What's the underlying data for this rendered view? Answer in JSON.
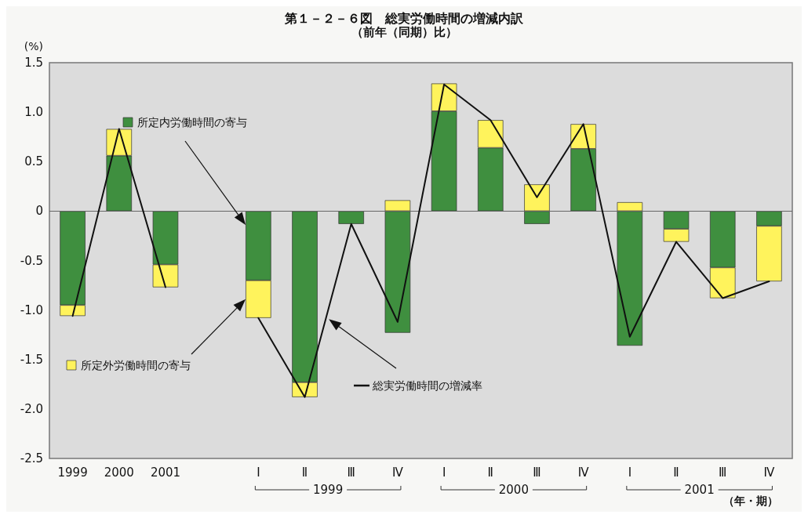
{
  "chart_data": {
    "type": "bar",
    "title": "第１－２－６図　総実労働時間の増減内訳",
    "subtitle": "（前年（同期）比）",
    "ylabel": "(%)",
    "categories": [
      "1999",
      "2000",
      "2001",
      null,
      "Ⅰ",
      "Ⅱ",
      "Ⅲ",
      "Ⅳ",
      "Ⅰ",
      "Ⅱ",
      "Ⅲ",
      "Ⅳ",
      "Ⅰ",
      "Ⅱ",
      "Ⅲ",
      "Ⅳ"
    ],
    "stacked": true,
    "series": [
      {
        "name": "所定内労働時間の寄与",
        "color": "#3f8f3f",
        "values": [
          -0.95,
          0.56,
          -0.54,
          null,
          -0.7,
          -1.73,
          -0.13,
          -1.23,
          1.01,
          0.64,
          -0.13,
          0.63,
          -1.36,
          -0.18,
          -0.57,
          -0.15
        ]
      },
      {
        "name": "所定外労働時間の寄与",
        "color": "#fff35c",
        "values": [
          -0.11,
          0.27,
          -0.23,
          null,
          -0.38,
          -0.15,
          0,
          0.11,
          0.28,
          0.28,
          0.27,
          0.25,
          0.09,
          -0.13,
          -0.31,
          -0.56
        ]
      },
      {
        "name": "総実労働時間の増減率",
        "type": "line",
        "color": "#111111",
        "values": [
          -1.06,
          0.83,
          -0.77,
          null,
          -1.08,
          -1.88,
          -0.13,
          -1.12,
          1.28,
          0.92,
          0.14,
          0.88,
          -1.27,
          -0.31,
          -0.88,
          -0.71
        ]
      }
    ],
    "ylim": [
      -2.5,
      1.5
    ],
    "yticks": [
      {
        "value": -2.5,
        "label": "-2.5"
      },
      {
        "value": -2,
        "label": "-2.0"
      },
      {
        "value": -1.5,
        "label": "-1.5"
      },
      {
        "value": -1,
        "label": "-1.0"
      },
      {
        "value": -0.5,
        "label": "-0.5"
      },
      0,
      {
        "value": 0.5,
        "label": "0.5"
      },
      {
        "value": 1,
        "label": "1.0"
      },
      {
        "value": 1.5,
        "label": "1.5"
      }
    ],
    "ref_lines": [
      {
        "axis": "y",
        "value": 0,
        "color": "#666666"
      }
    ],
    "annotations": [
      "1999",
      "2000",
      "2001",
      "（年・期）"
    ],
    "grid": false,
    "legend": "left",
    "marker": "none",
    "line_style": "solid"
  }
}
